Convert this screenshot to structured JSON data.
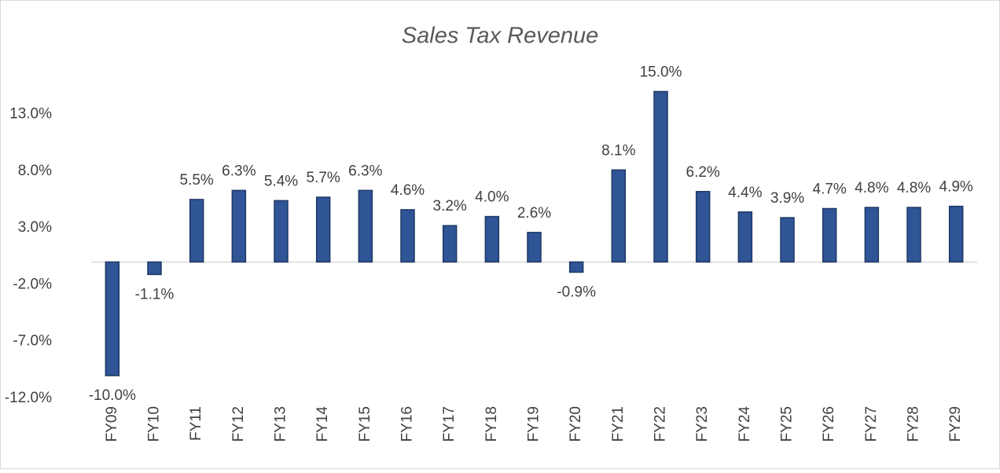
{
  "chart_data": {
    "type": "bar",
    "title": "Sales Tax Revenue",
    "categories": [
      "FY09",
      "FY10",
      "FY11",
      "FY12",
      "FY13",
      "FY14",
      "FY15",
      "FY16",
      "FY17",
      "FY18",
      "FY19",
      "FY20",
      "FY21",
      "FY22",
      "FY23",
      "FY24",
      "FY25",
      "FY26",
      "FY27",
      "FY28",
      "FY29"
    ],
    "values": [
      -10.0,
      -1.1,
      5.5,
      6.3,
      5.4,
      5.7,
      6.3,
      4.6,
      3.2,
      4.0,
      2.6,
      -0.9,
      8.1,
      15.0,
      6.2,
      4.4,
      3.9,
      4.7,
      4.8,
      4.8,
      4.9
    ],
    "value_labels": [
      "-10.0%",
      "-1.1%",
      "5.5%",
      "6.3%",
      "5.4%",
      "5.7%",
      "6.3%",
      "4.6%",
      "3.2%",
      "4.0%",
      "2.6%",
      "-0.9%",
      "8.1%",
      "15.0%",
      "6.2%",
      "4.4%",
      "3.9%",
      "4.7%",
      "4.8%",
      "4.8%",
      "4.9%"
    ],
    "color": "#2f5597",
    "ylim": [
      -12,
      15
    ],
    "yticks": [
      {
        "value": -12,
        "label": "-12.0%"
      },
      {
        "value": -7,
        "label": "-7.0%"
      },
      {
        "value": -2,
        "label": "-2.0%"
      },
      {
        "value": 3,
        "label": "3.0%"
      },
      {
        "value": 8,
        "label": "8.0%"
      },
      {
        "value": 13,
        "label": "13.0%"
      }
    ],
    "grid": false
  }
}
